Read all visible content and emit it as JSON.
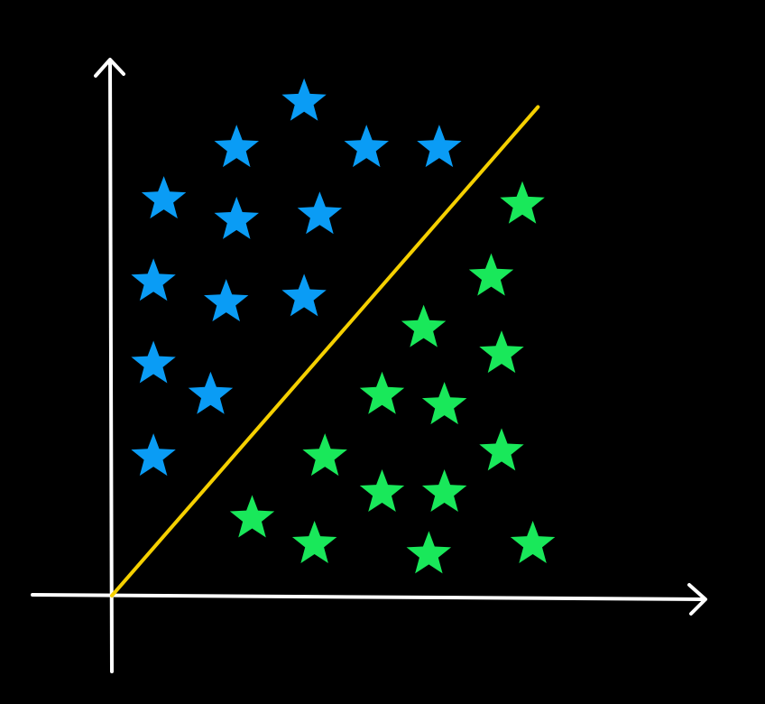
{
  "colors": {
    "background": "#000000",
    "axes": "#ffffff",
    "boundary": "#f5d000",
    "class_a": "#0a9cf5",
    "class_b": "#19e85a"
  },
  "chart_data": {
    "type": "scatter",
    "marker": "star",
    "xlim": [
      0,
      100
    ],
    "ylim": [
      0,
      100
    ],
    "grid": false,
    "legend": "none",
    "decision_boundary": {
      "x1": 0,
      "y1": 0,
      "x2": 82,
      "y2": 95
    },
    "series": [
      {
        "color": "#0a9cf5",
        "x": [
          37,
          24,
          49,
          63,
          10,
          24,
          40,
          8,
          22,
          37,
          8,
          19,
          8
        ],
        "y": [
          96,
          87,
          87,
          87,
          77,
          73,
          74,
          61,
          57,
          58,
          45,
          39,
          27
        ]
      },
      {
        "color": "#19e85a",
        "x": [
          79,
          73,
          60,
          75,
          52,
          64,
          75,
          41,
          52,
          64,
          27,
          39,
          61,
          81
        ],
        "y": [
          76,
          62,
          52,
          47,
          39,
          37,
          28,
          27,
          20,
          20,
          15,
          10,
          8,
          10
        ]
      }
    ]
  }
}
